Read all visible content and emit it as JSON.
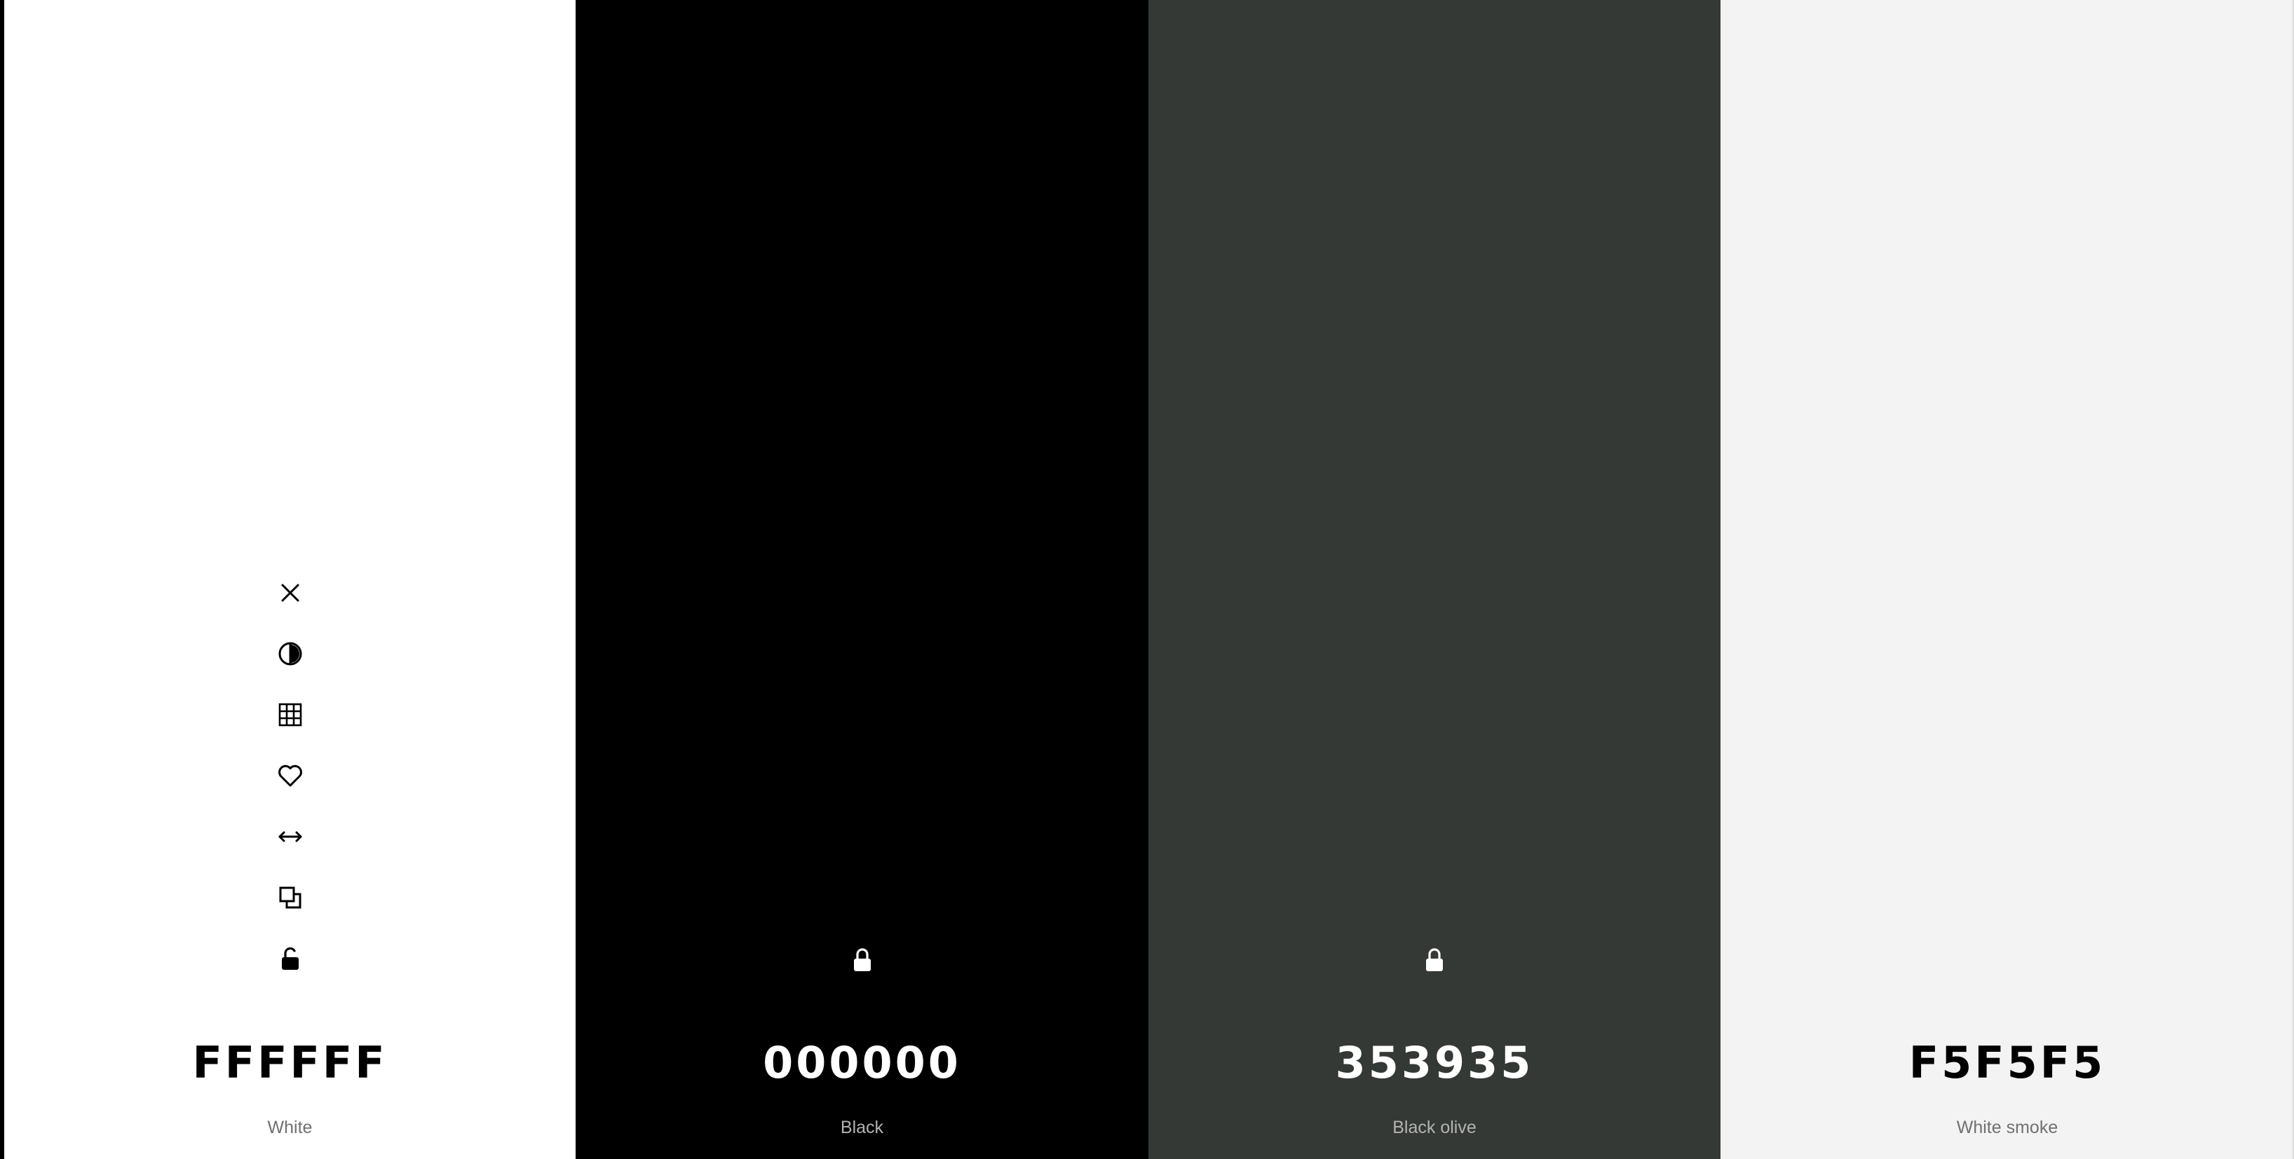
{
  "palette": {
    "swatches": [
      {
        "hex": "FFFFFF",
        "name": "White",
        "background": "#FFFFFF",
        "hex_color": "#000000",
        "name_color": "#707070",
        "icon_color": "#000000",
        "tools": [
          "close-icon",
          "contrast-icon",
          "grid-icon",
          "heart-icon",
          "drag-arrows-icon",
          "copy-icon",
          "unlocked-icon"
        ],
        "locked": false
      },
      {
        "hex": "000000",
        "name": "Black",
        "background": "#000000",
        "hex_color": "#FFFFFF",
        "name_color": "#B3B3B3",
        "icon_color": "#FFFFFF",
        "tools": [
          "lock-icon"
        ],
        "locked": true
      },
      {
        "hex": "353935",
        "name": "Black olive",
        "background": "#353935",
        "hex_color": "#FFFFFF",
        "name_color": "#B3B3B3",
        "icon_color": "#FFFFFF",
        "tools": [
          "lock-icon"
        ],
        "locked": true
      },
      {
        "hex": "F5F5F5",
        "name": "White smoke",
        "background": "#F5F5F5",
        "hex_color": "#000000",
        "name_color": "#707070",
        "icon_color": "#000000",
        "tools": [],
        "locked": false
      }
    ]
  }
}
